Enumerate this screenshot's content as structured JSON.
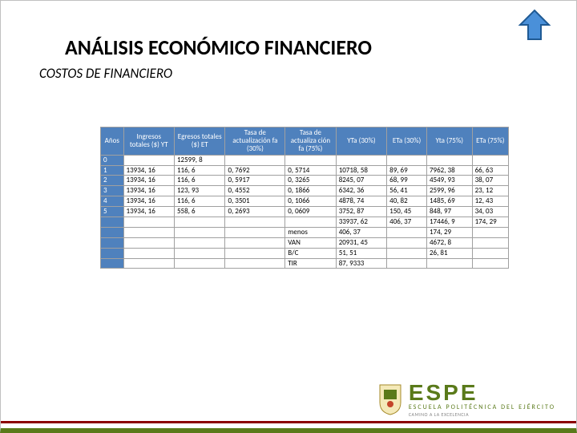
{
  "title": "ANÁLISIS ECONÓMICO FINANCIERO",
  "subtitle": "COSTOS DE FINANCIERO",
  "arrow": {
    "fill": "#4a90d9",
    "stroke": "#1f5a94"
  },
  "table": {
    "header_bg": "#4f81bd",
    "header_color": "#ffffff",
    "columns": [
      "Años",
      "Ingresos totales ($) YT",
      "Egresos totales ($) ET",
      "Tasa de actualización fa (30%)",
      "Tasa de actualiza ción fa (75%)",
      "YTa (30%)",
      "ETa (30%)",
      "Yta (75%)",
      "ETa (75%)"
    ],
    "rows": [
      [
        "0",
        "",
        "12599, 8",
        "",
        "",
        "",
        "",
        "",
        ""
      ],
      [
        "1",
        "13934, 16",
        "116, 6",
        "0, 7692",
        "0, 5714",
        "10718, 58",
        "89, 69",
        "7962, 38",
        "66, 63"
      ],
      [
        "2",
        "13934, 16",
        "116, 6",
        "0, 5917",
        "0, 3265",
        "8245, 07",
        "68, 99",
        "4549, 93",
        "38, 07"
      ],
      [
        "3",
        "13934, 16",
        "123, 93",
        "0, 4552",
        "0, 1866",
        "6342, 36",
        "56, 41",
        "2599, 96",
        "23, 12"
      ],
      [
        "4",
        "13934, 16",
        "116, 6",
        "0, 3501",
        "0, 1066",
        "4878, 74",
        "40, 82",
        "1485, 69",
        "12, 43"
      ],
      [
        "5",
        "13934, 16",
        "558, 6",
        "0, 2693",
        "0, 0609",
        "3752, 87",
        "150, 45",
        "848, 97",
        "34, 03"
      ],
      [
        "",
        "",
        "",
        "",
        "",
        "33937, 62",
        "406, 37",
        "17446, 9",
        "174, 29"
      ],
      [
        "",
        "",
        "",
        "",
        "menos",
        "406, 37",
        "",
        "174, 29",
        ""
      ],
      [
        "",
        "",
        "",
        "",
        "VAN",
        "20931, 45",
        "",
        "4672, 8",
        ""
      ],
      [
        "",
        "",
        "",
        "",
        "B/C",
        "51, 51",
        "",
        "26, 81",
        ""
      ],
      [
        "",
        "",
        "",
        "",
        "TIR",
        "87, 9333",
        "",
        "",
        ""
      ]
    ],
    "col_widths": [
      "22px",
      "56px",
      "56px",
      "66px",
      "56px",
      "56px",
      "44px",
      "50px",
      "40px"
    ]
  },
  "logo": {
    "big": "ESPE",
    "sub1": "ESCUELA POLITÉCNICA DEL EJÉRCITO",
    "sub2": "CAMINO A LA EXCELENCIA",
    "color": "#5a7a1a"
  }
}
